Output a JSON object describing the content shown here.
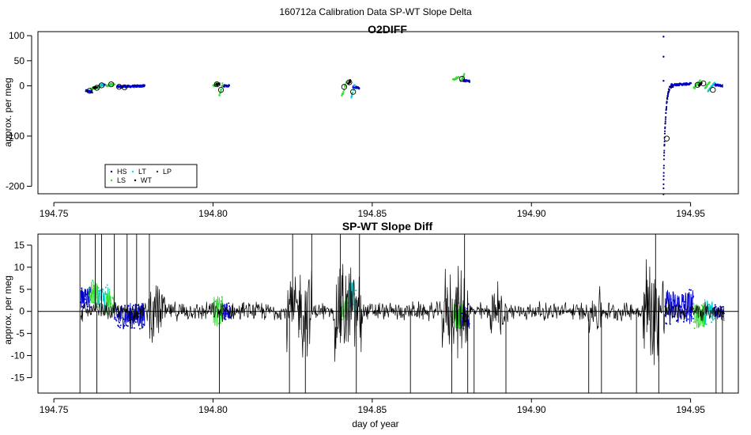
{
  "figure": {
    "suptitle": "160712a   Calibration Data SP-WT Slope Delta"
  },
  "chart_data": [
    {
      "type": "scatter",
      "title": "O2DIFF",
      "xlabel": "",
      "ylabel": "approx. per meg",
      "xlim": [
        194.745,
        194.965
      ],
      "ylim": [
        -215,
        108
      ],
      "xticks": [
        "194.75",
        "194.80",
        "194.85",
        "194.90",
        "194.95"
      ],
      "yticks": [
        "100",
        "50",
        "0",
        "-100",
        "-200"
      ],
      "legend": {
        "placement": "bottom-left",
        "entries": [
          {
            "label": "HS",
            "color": "#000080"
          },
          {
            "label": "LT",
            "color": "#00e5ee"
          },
          {
            "label": "LP",
            "color": "#1a4d1a"
          },
          {
            "label": "LS",
            "color": "#33dd33"
          },
          {
            "label": "WT",
            "color": "#000000"
          }
        ]
      },
      "series": [
        {
          "name": "HS",
          "color": "#0000cc",
          "segments": [
            {
              "x0": 194.76,
              "x1": 194.762,
              "y0": -10,
              "y1": -12
            },
            {
              "x0": 194.764,
              "x1": 194.766,
              "y0": 0,
              "y1": 2
            },
            {
              "x0": 194.77,
              "x1": 194.7785,
              "y0": -2,
              "y1": 0
            },
            {
              "x0": 194.803,
              "x1": 194.805,
              "y0": 0,
              "y1": 0
            },
            {
              "x0": 194.844,
              "x1": 194.846,
              "y0": -2,
              "y1": -4
            },
            {
              "x0": 194.8785,
              "x1": 194.8805,
              "y0": 11,
              "y1": 9
            },
            {
              "x0": 194.944,
              "x1": 194.95,
              "y0": 2,
              "y1": 4
            },
            {
              "x0": 194.9575,
              "x1": 194.96,
              "y0": 2,
              "y1": 0
            }
          ]
        },
        {
          "name": "LS",
          "color": "#33dd33",
          "segments": [
            {
              "x0": 194.7615,
              "x1": 194.764,
              "y0": -6,
              "y1": -3
            },
            {
              "x0": 194.7665,
              "x1": 194.769,
              "y0": 0,
              "y1": 4
            },
            {
              "x0": 194.8,
              "x1": 194.8015,
              "y0": 0,
              "y1": 5
            },
            {
              "x0": 194.802,
              "x1": 194.803,
              "y0": -20,
              "y1": 4
            },
            {
              "x0": 194.8405,
              "x1": 194.842,
              "y0": -20,
              "y1": 10
            },
            {
              "x0": 194.8755,
              "x1": 194.877,
              "y0": 12,
              "y1": 17
            },
            {
              "x0": 194.8775,
              "x1": 194.879,
              "y0": 8,
              "y1": 22
            },
            {
              "x0": 194.951,
              "x1": 194.953,
              "y0": -5,
              "y1": 10
            },
            {
              "x0": 194.9545,
              "x1": 194.956,
              "y0": -5,
              "y1": 8
            }
          ]
        },
        {
          "name": "LT",
          "color": "#00cccc",
          "segments": [
            {
              "x0": 194.7645,
              "x1": 194.7655,
              "y0": 0,
              "y1": 3
            },
            {
              "x0": 194.8435,
              "x1": 194.8445,
              "y0": -25,
              "y1": 3
            },
            {
              "x0": 194.9555,
              "x1": 194.9575,
              "y0": -10,
              "y1": 6
            }
          ]
        },
        {
          "name": "WT",
          "color": "#000000",
          "segments": [
            {
              "x0": 194.7625,
              "x1": 194.7635,
              "y0": -4,
              "y1": -3
            },
            {
              "x0": 194.801,
              "x1": 194.802,
              "y0": 2,
              "y1": 4
            },
            {
              "x0": 194.8425,
              "x1": 194.8432,
              "y0": 5,
              "y1": 10
            },
            {
              "x0": 194.9525,
              "x1": 194.9535,
              "y0": 2,
              "y1": 5
            }
          ]
        },
        {
          "name": "HS-spike",
          "color": "#000080",
          "spike": true,
          "x0": 194.9415,
          "x1": 194.9445,
          "y0": -215,
          "y1": 0
        },
        {
          "name": "HS-outliers",
          "color": "#000080",
          "points": [
            [
              194.9415,
              98
            ],
            [
              194.9415,
              58
            ],
            [
              194.9415,
              10
            ]
          ]
        }
      ],
      "means": [
        [
          194.7612,
          -10
        ],
        [
          194.7635,
          -4
        ],
        [
          194.765,
          1
        ],
        [
          194.768,
          3
        ],
        [
          194.7705,
          -2
        ],
        [
          194.7722,
          -3
        ],
        [
          194.8012,
          3
        ],
        [
          194.8025,
          -8
        ],
        [
          194.8412,
          -2
        ],
        [
          194.8428,
          7
        ],
        [
          194.844,
          -12
        ],
        [
          194.8782,
          14
        ],
        [
          194.9425,
          -105
        ],
        [
          194.9522,
          2
        ],
        [
          194.954,
          5
        ],
        [
          194.957,
          -8
        ]
      ]
    },
    {
      "type": "line",
      "title": "SP-WT Slope Diff",
      "xlabel": "day of year",
      "ylabel": "approx. per meg",
      "xlim": [
        194.745,
        194.965
      ],
      "ylim": [
        -18.5,
        17.5
      ],
      "xticks": [
        "194.75",
        "194.80",
        "194.85",
        "194.90",
        "194.95"
      ],
      "yticks": [
        "15",
        "10",
        "5",
        "0",
        "-5",
        "-10",
        "-15"
      ],
      "hline": 0,
      "line": {
        "color": "#000000",
        "x0": 194.7585,
        "x1": 194.9605,
        "typical_amplitude": 2.5
      },
      "bursts": [
        {
          "x0": 194.7795,
          "x1": 194.785,
          "amp": 8
        },
        {
          "x0": 194.823,
          "x1": 194.831,
          "amp": 12
        },
        {
          "x0": 194.838,
          "x1": 194.847,
          "amp": 14
        },
        {
          "x0": 194.872,
          "x1": 194.88,
          "amp": 12
        },
        {
          "x0": 194.887,
          "x1": 194.892,
          "amp": 8
        },
        {
          "x0": 194.918,
          "x1": 194.922,
          "amp": 7
        },
        {
          "x0": 194.935,
          "x1": 194.942,
          "amp": 16
        }
      ],
      "spikes": [
        [
          194.7582,
          17.5
        ],
        [
          194.7582,
          -18.5
        ],
        [
          194.763,
          17.5
        ],
        [
          194.7635,
          -18.5
        ],
        [
          194.765,
          17.5
        ],
        [
          194.769,
          17.5
        ],
        [
          194.773,
          17.5
        ],
        [
          194.774,
          -18.5
        ],
        [
          194.776,
          17.5
        ],
        [
          194.78,
          17.5
        ],
        [
          194.802,
          -18.5
        ],
        [
          194.824,
          -18.5
        ],
        [
          194.825,
          17.5
        ],
        [
          194.829,
          -18.5
        ],
        [
          194.831,
          17.5
        ],
        [
          194.84,
          17.5
        ],
        [
          194.845,
          -18.5
        ],
        [
          194.846,
          17.5
        ],
        [
          194.862,
          -18.5
        ],
        [
          194.875,
          -18.5
        ],
        [
          194.879,
          17.5
        ],
        [
          194.88,
          -18.5
        ],
        [
          194.882,
          -18.5
        ],
        [
          194.892,
          -18.5
        ],
        [
          194.918,
          -18.5
        ],
        [
          194.922,
          -18.5
        ],
        [
          194.933,
          -18.5
        ],
        [
          194.939,
          17.5
        ],
        [
          194.94,
          -18.5
        ],
        [
          194.958,
          -18.5
        ],
        [
          194.96,
          -18.5
        ]
      ],
      "colored_segments": [
        {
          "color": "#0000cc",
          "x0": 194.7585,
          "x1": 194.762,
          "center": 3,
          "amp": 2.5
        },
        {
          "color": "#33dd33",
          "x0": 194.761,
          "x1": 194.764,
          "center": 4,
          "amp": 3
        },
        {
          "color": "#00cccc",
          "x0": 194.764,
          "x1": 194.767,
          "center": 3,
          "amp": 3
        },
        {
          "color": "#33dd33",
          "x0": 194.7665,
          "x1": 194.769,
          "center": 2,
          "amp": 3
        },
        {
          "color": "#0000cc",
          "x0": 194.769,
          "x1": 194.7785,
          "center": -1,
          "amp": 3
        },
        {
          "color": "#33dd33",
          "x0": 194.8,
          "x1": 194.803,
          "center": 0,
          "amp": 3.5
        },
        {
          "color": "#0000cc",
          "x0": 194.803,
          "x1": 194.8055,
          "center": 0,
          "amp": 2
        },
        {
          "color": "#33dd33",
          "x0": 194.84,
          "x1": 194.8425,
          "center": 1,
          "amp": 3
        },
        {
          "color": "#00cccc",
          "x0": 194.843,
          "x1": 194.845,
          "center": 3,
          "amp": 4
        },
        {
          "color": "#33dd33",
          "x0": 194.8755,
          "x1": 194.879,
          "center": -1,
          "amp": 3
        },
        {
          "color": "#0000cc",
          "x0": 194.878,
          "x1": 194.8805,
          "center": -1,
          "amp": 3
        },
        {
          "color": "#0000cc",
          "x0": 194.942,
          "x1": 194.951,
          "center": 1,
          "amp": 4
        },
        {
          "color": "#33dd33",
          "x0": 194.951,
          "x1": 194.9545,
          "center": -1,
          "amp": 3
        },
        {
          "color": "#00cccc",
          "x0": 194.9545,
          "x1": 194.9575,
          "center": 0,
          "amp": 3
        },
        {
          "color": "#0000cc",
          "x0": 194.9575,
          "x1": 194.9605,
          "center": 0,
          "amp": 1.5
        }
      ]
    }
  ]
}
